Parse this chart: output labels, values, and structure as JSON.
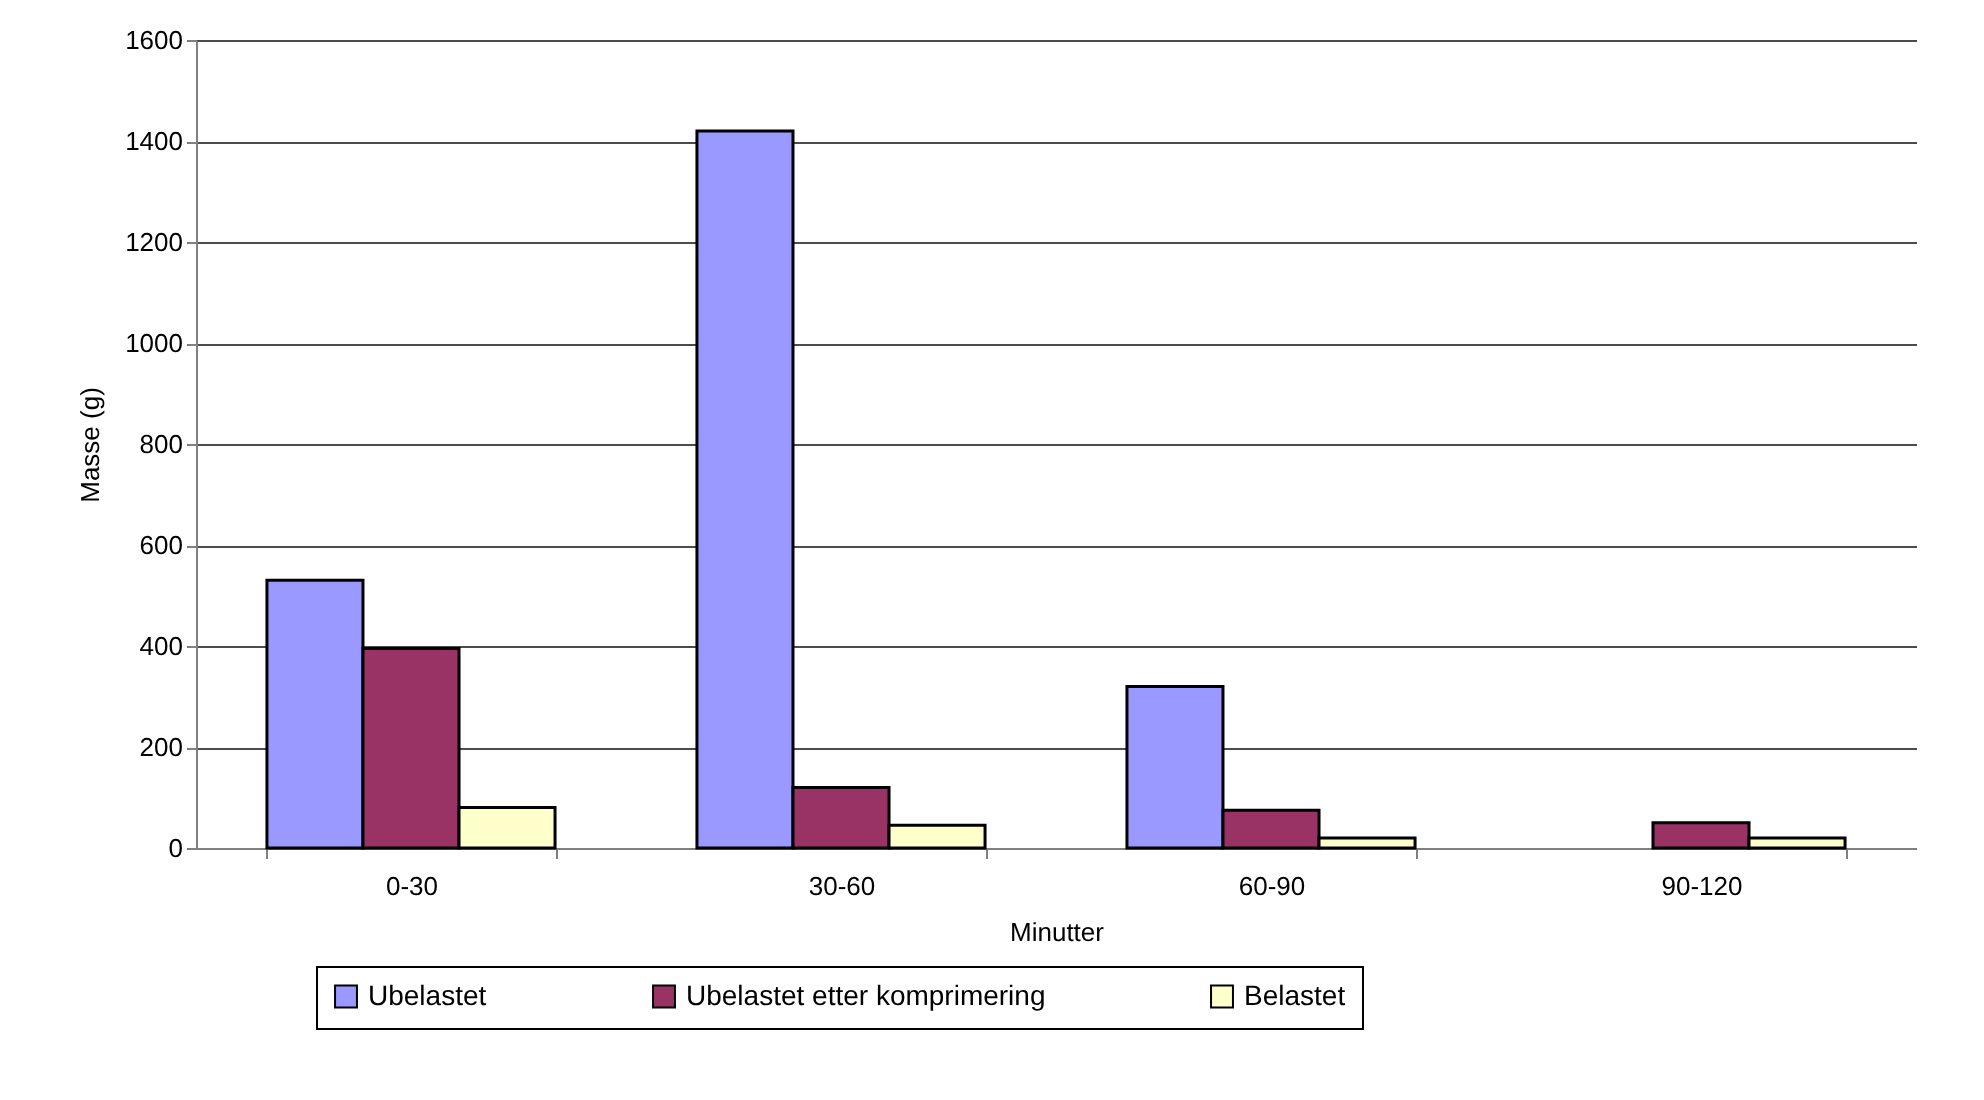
{
  "chart_data": {
    "type": "bar",
    "xlabel": "Minutter",
    "ylabel": "Masse (g)",
    "categories": [
      "0-30",
      "30-60",
      "60-90",
      "90-120"
    ],
    "series": [
      {
        "name": "Ubelastet",
        "color": "#9999ff",
        "values": [
          530,
          1420,
          320,
          null
        ]
      },
      {
        "name": "Ubelastet etter komprimering",
        "color": "#993366",
        "values": [
          395,
          120,
          75,
          50
        ]
      },
      {
        "name": "Belastet",
        "color": "#ffffcc",
        "values": [
          80,
          45,
          20,
          20
        ]
      }
    ],
    "ylim": [
      0,
      1600
    ],
    "yticks": [
      0,
      200,
      400,
      600,
      800,
      1000,
      1200,
      1400,
      1600
    ],
    "grid": "y",
    "legend": "bottom"
  }
}
